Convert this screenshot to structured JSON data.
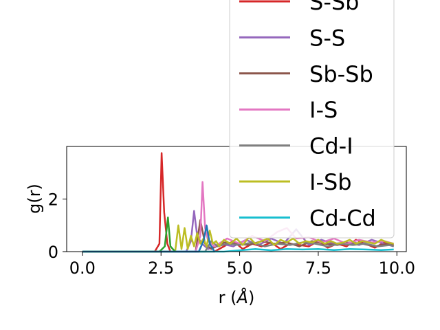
{
  "chart_data": {
    "type": "line",
    "xlabel_prefix": "r (",
    "xlabel_unit": "Å",
    "xlabel_suffix": ")",
    "ylabel": "g(r)",
    "xlim": [
      -0.5,
      10.3
    ],
    "ylim": [
      0,
      4.0
    ],
    "xticks": [
      0.0,
      2.5,
      5.0,
      7.5,
      10.0
    ],
    "xtick_labels": [
      "0.0",
      "2.5",
      "5.0",
      "7.5",
      "10.0"
    ],
    "yticks": [
      0,
      2
    ],
    "ytick_labels": [
      "0",
      "2"
    ],
    "grid": false,
    "legend_placement": "upper-right",
    "series": [
      {
        "name": "S-Sb",
        "color": "#d62728",
        "x": [
          0,
          2.3,
          2.45,
          2.52,
          2.6,
          2.7,
          2.8,
          3.0,
          4.2,
          4.5,
          4.8,
          5.1,
          5.4,
          5.7,
          6.0,
          6.3,
          6.6,
          6.9,
          7.2,
          7.5,
          7.8,
          8.1,
          8.4,
          8.7,
          9.0,
          9.3,
          9.6,
          9.9
        ],
        "y": [
          0,
          0,
          0.3,
          3.75,
          1.5,
          0.3,
          0,
          0,
          0,
          0.2,
          0.4,
          0.1,
          0.3,
          0.2,
          0.35,
          0.1,
          0.3,
          0.25,
          0.2,
          0.4,
          0.15,
          0.3,
          0.2,
          0.45,
          0.3,
          0.15,
          0.35,
          0.2
        ]
      },
      {
        "name": "S-S",
        "color": "#9467bd",
        "x": [
          0,
          3.3,
          3.45,
          3.55,
          3.65,
          3.8,
          4.0,
          4.4,
          4.8,
          5.2,
          5.6,
          6.0,
          6.4,
          6.8,
          7.2,
          7.6,
          8.0,
          8.4,
          8.8,
          9.2,
          9.6,
          9.9
        ],
        "y": [
          0,
          0,
          0.4,
          1.55,
          0.6,
          0.3,
          0.1,
          0.3,
          0.2,
          0.45,
          0.25,
          0.5,
          0.3,
          0.85,
          0.25,
          0.45,
          0.3,
          0.35,
          0.25,
          0.45,
          0.3,
          0.2
        ]
      },
      {
        "name": "Sb-Sb",
        "color": "#8c564b",
        "x": [
          0,
          3.6,
          3.75,
          3.9,
          4.1,
          4.5,
          4.9,
          5.3,
          5.7,
          6.1,
          6.5,
          6.9,
          7.3,
          7.7,
          8.1,
          8.5,
          8.9,
          9.3,
          9.7,
          9.9
        ],
        "y": [
          0,
          0,
          1.2,
          0.3,
          0.1,
          0.35,
          0.3,
          0.25,
          0.4,
          0.3,
          0.35,
          0.2,
          0.4,
          0.3,
          0.25,
          0.35,
          0.3,
          0.2,
          0.3,
          0.25
        ]
      },
      {
        "name": "I-S",
        "color": "#e377c2",
        "x": [
          0,
          3.6,
          3.75,
          3.82,
          3.9,
          4.0,
          4.2,
          4.6,
          5.0,
          5.4,
          5.8,
          6.2,
          6.5,
          6.8,
          7.2,
          7.6,
          8.0,
          8.4,
          8.8,
          9.2,
          9.6,
          9.9
        ],
        "y": [
          0,
          0,
          0.6,
          2.65,
          0.9,
          0.4,
          0.2,
          0.5,
          0.3,
          0.6,
          0.4,
          0.75,
          0.9,
          0.5,
          0.55,
          0.35,
          0.5,
          0.3,
          0.45,
          0.35,
          0.4,
          0.3
        ]
      },
      {
        "name": "Cd-I",
        "color": "#7f7f7f",
        "x": [
          0,
          3.9,
          4.1,
          4.3,
          4.6,
          5.0,
          5.4,
          5.8,
          6.2,
          6.6,
          7.0,
          7.4,
          7.8,
          8.2,
          8.6,
          9.0,
          9.4,
          9.8,
          9.9
        ],
        "y": [
          0,
          0,
          0.4,
          0.2,
          0.3,
          0.25,
          0.35,
          0.2,
          0.3,
          0.25,
          0.35,
          0.3,
          0.2,
          0.3,
          0.25,
          0.3,
          0.2,
          0.25,
          0.2
        ]
      },
      {
        "name": "I-Sb",
        "color": "#bcbd22",
        "x": [
          0,
          2.95,
          3.05,
          3.15,
          3.25,
          3.35,
          3.45,
          3.55,
          3.65,
          3.75,
          3.85,
          3.95,
          4.05,
          4.15,
          4.25,
          4.35,
          4.5,
          4.7,
          4.9,
          5.1,
          5.3,
          5.5,
          5.7,
          5.9,
          6.1,
          6.3,
          6.5,
          6.7,
          6.9,
          7.1,
          7.3,
          7.5,
          7.7,
          7.9,
          8.1,
          8.3,
          8.5,
          8.7,
          8.9,
          9.1,
          9.3,
          9.5,
          9.7,
          9.9
        ],
        "y": [
          0,
          0,
          1.0,
          0.1,
          0.9,
          0.1,
          0.6,
          0.2,
          0.7,
          0.3,
          0.5,
          0.2,
          0.8,
          0.3,
          0.4,
          0.2,
          0.45,
          0.3,
          0.5,
          0.25,
          0.55,
          0.3,
          0.4,
          0.5,
          0.25,
          0.45,
          0.35,
          0.5,
          0.3,
          0.4,
          0.35,
          0.45,
          0.3,
          0.4,
          0.3,
          0.35,
          0.45,
          0.3,
          0.4,
          0.35,
          0.3,
          0.45,
          0.35,
          0.3
        ]
      },
      {
        "name": "Cd-Cd",
        "color": "#17becf",
        "x": [
          0,
          4.5,
          5.0,
          5.5,
          6.0,
          6.5,
          7.0,
          7.5,
          8.0,
          8.5,
          9.0,
          9.5,
          9.9
        ],
        "y": [
          0,
          0,
          0.05,
          0.1,
          0.05,
          0.1,
          0.08,
          0.1,
          0.06,
          0.1,
          0.08,
          0.06,
          0.08
        ]
      },
      {
        "name": "",
        "color": "#2ca02c",
        "x": [
          0,
          2.45,
          2.62,
          2.72,
          2.8,
          2.95
        ],
        "y": [
          0,
          0,
          0.2,
          1.3,
          0.2,
          0
        ]
      },
      {
        "name": "",
        "color": "#1f77b4",
        "x": [
          0,
          3.7,
          3.85,
          3.95,
          4.05,
          4.2
        ],
        "y": [
          0,
          0,
          0.4,
          1.0,
          0.3,
          0
        ]
      }
    ]
  }
}
